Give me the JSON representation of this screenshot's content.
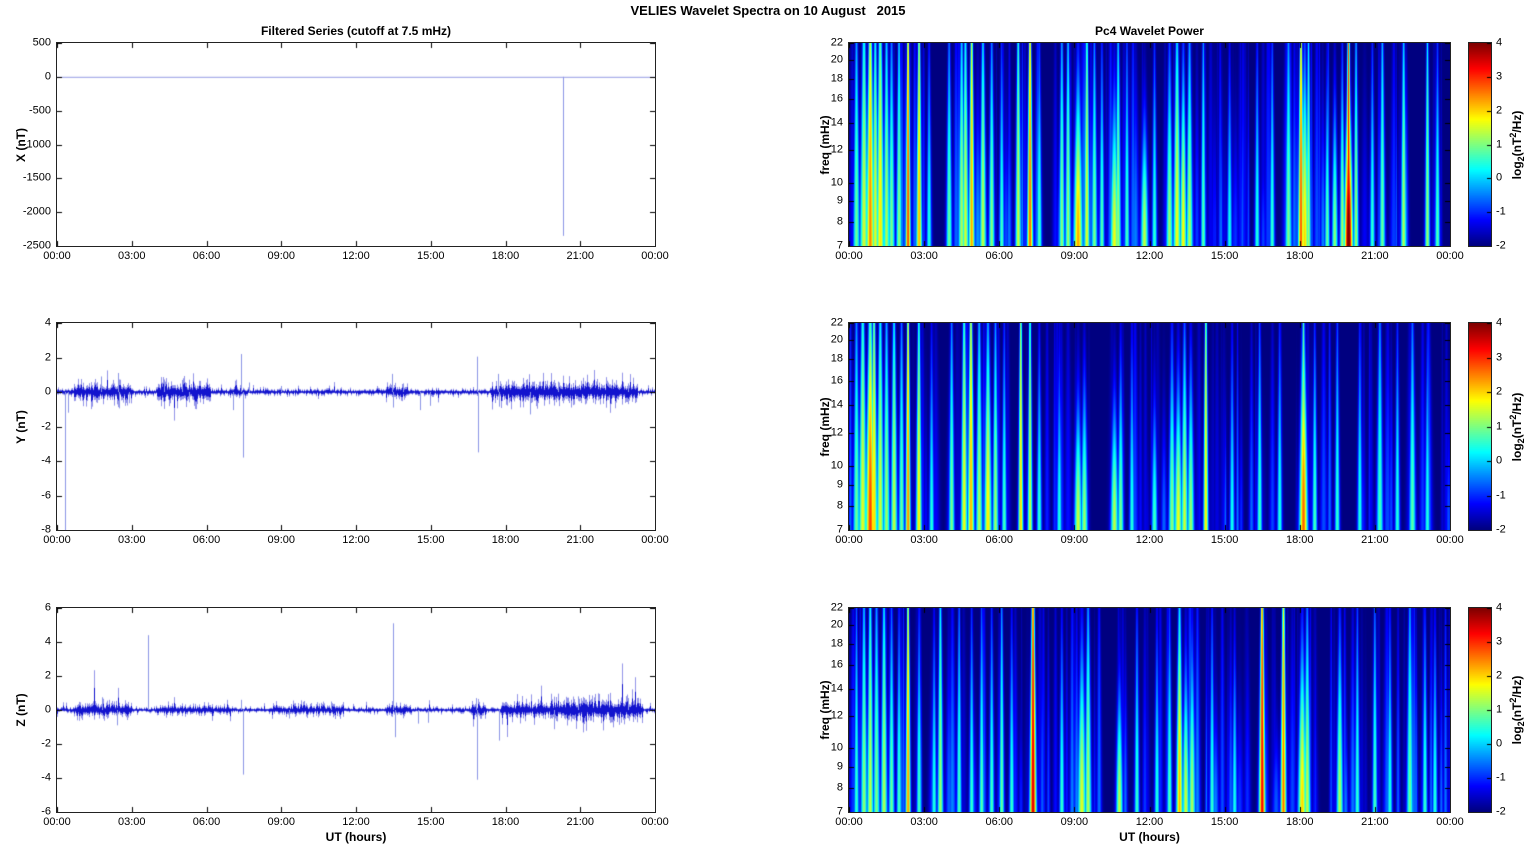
{
  "figure_title": "VELIES Wavelet Spectra on 10 August   2015",
  "colors": {
    "background": "#ffffff",
    "frame": "#222222",
    "flat_line": "#aab0ea",
    "noise_band": "#1213ce",
    "spike_line": "#8d96e6",
    "spectrogram_background": "#000084"
  },
  "time_axis": {
    "ticks": [
      "00:00",
      "03:00",
      "06:00",
      "09:00",
      "12:00",
      "15:00",
      "18:00",
      "21:00",
      "00:00"
    ],
    "tick_hours": [
      0,
      3,
      6,
      9,
      12,
      15,
      18,
      21,
      24
    ],
    "xlabel": "UT (hours)",
    "xlim_hours": [
      0,
      24
    ]
  },
  "colorbar": {
    "ticks": [
      4,
      3,
      2,
      1,
      0,
      -1,
      -2
    ],
    "clim": [
      -2,
      4
    ],
    "colormap": "jet",
    "label_parts": {
      "p1": "log",
      "sub": "2",
      "p2": "(nT",
      "sup": "2",
      "p3": "/Hz)"
    }
  },
  "chart_data": [
    {
      "id": "ts_x",
      "type": "line",
      "component": "X",
      "title": "Filtered Series (cutoff at 7.5 mHz)",
      "ylabel": "X (nT)",
      "ylim": [
        -2500,
        500
      ],
      "yticks": [
        500,
        0,
        -500,
        -1000,
        -1500,
        -2000,
        -2500
      ],
      "xlim": [
        0,
        24
      ],
      "baseline_amp": 0,
      "seed": 10,
      "bursts_format": "[t_start_h, t_end_h, amplitude_nT]",
      "bursts": [],
      "spikes_format": "[t_hours, value_nT]",
      "spikes": [
        [
          20.3,
          -2350
        ]
      ]
    },
    {
      "id": "ts_y",
      "type": "line",
      "component": "Y",
      "ylabel": "Y (nT)",
      "ylim": [
        -8,
        4
      ],
      "yticks": [
        4,
        2,
        0,
        -2,
        -4,
        -6,
        -8
      ],
      "xlim": [
        0,
        24
      ],
      "baseline_amp": 0.06,
      "seed": 11,
      "bursts_format": "[t_start_h, t_end_h, amplitude_nT]",
      "bursts": [
        [
          0.7,
          3.0,
          0.18
        ],
        [
          4.0,
          6.2,
          0.22
        ],
        [
          6.9,
          7.6,
          0.12
        ],
        [
          13.2,
          14.1,
          0.14
        ],
        [
          17.4,
          19.6,
          0.2
        ],
        [
          19.6,
          23.3,
          0.22
        ]
      ],
      "spikes_format": "[t_hours, value_nT]",
      "spikes": [
        [
          0.33,
          -8
        ],
        [
          0.45,
          -1.2
        ],
        [
          1.75,
          0.9
        ],
        [
          2.45,
          1.1
        ],
        [
          2.5,
          -0.95
        ],
        [
          2.9,
          -0.5
        ],
        [
          4.3,
          0.6
        ],
        [
          5.0,
          0.7
        ],
        [
          5.3,
          -0.6
        ],
        [
          7.05,
          -1.05
        ],
        [
          7.4,
          2.2
        ],
        [
          7.45,
          -3.8
        ],
        [
          7.7,
          0.55
        ],
        [
          9.0,
          0.35
        ],
        [
          13.45,
          1.05
        ],
        [
          13.5,
          -0.9
        ],
        [
          13.9,
          0.5
        ],
        [
          14.55,
          -1.05
        ],
        [
          14.95,
          -0.8
        ],
        [
          16.85,
          2.05
        ],
        [
          16.9,
          -3.5
        ],
        [
          17.7,
          1.05
        ],
        [
          17.75,
          -0.85
        ],
        [
          19.0,
          -1.3
        ],
        [
          20.1,
          0.6
        ],
        [
          22.9,
          0.5
        ]
      ]
    },
    {
      "id": "ts_z",
      "type": "line",
      "component": "Z",
      "ylabel": "Z (nT)",
      "ylim": [
        -6,
        6
      ],
      "yticks": [
        6,
        4,
        2,
        0,
        -2,
        -4,
        -6
      ],
      "xlim": [
        0,
        24
      ],
      "baseline_amp": 0.05,
      "seed": 12,
      "bursts_format": "[t_start_h, t_end_h, amplitude_nT]",
      "bursts": [
        [
          0.7,
          3.0,
          0.14
        ],
        [
          4.0,
          7.0,
          0.1
        ],
        [
          8.5,
          11.5,
          0.1
        ],
        [
          13.2,
          14.2,
          0.12
        ],
        [
          16.6,
          17.2,
          0.14
        ],
        [
          17.8,
          19.8,
          0.16
        ],
        [
          19.8,
          23.5,
          0.24
        ]
      ],
      "spikes_format": "[t_hours, value_nT]",
      "spikes": [
        [
          1.8,
          0.75
        ],
        [
          2.4,
          -0.9
        ],
        [
          3.65,
          4.4
        ],
        [
          7.4,
          0.6
        ],
        [
          7.45,
          -3.8
        ],
        [
          9.3,
          -0.5
        ],
        [
          11.0,
          0.5
        ],
        [
          13.5,
          5.1
        ],
        [
          13.55,
          -1.6
        ],
        [
          14.5,
          -0.8
        ],
        [
          14.9,
          -0.75
        ],
        [
          16.8,
          0.7
        ],
        [
          16.85,
          -4.1
        ],
        [
          17.75,
          -1.8
        ],
        [
          19.95,
          -0.9
        ],
        [
          20.9,
          0.8
        ],
        [
          22.9,
          0.7
        ]
      ]
    },
    {
      "id": "spec_x",
      "type": "heatmap",
      "component": "X",
      "title": "Pc4 Wavelet Power",
      "ylabel": "freq (mHz)",
      "flim": [
        7,
        22
      ],
      "fticks": [
        22,
        20,
        18,
        16,
        14,
        12,
        10,
        9,
        8,
        7
      ],
      "yscale": "log",
      "clim": [
        -2,
        4
      ],
      "events_format": "[t_hours, sigma_hours, peak_log2_power, vertical_extent_frac]",
      "events": [
        [
          0.3,
          0.04,
          0.9,
          1.4
        ],
        [
          0.6,
          0.05,
          1.5,
          1.6
        ],
        [
          0.85,
          0.05,
          2.5,
          1.9
        ],
        [
          1.05,
          0.04,
          1.6,
          1.5
        ],
        [
          1.25,
          0.05,
          1.9,
          1.7
        ],
        [
          1.5,
          0.04,
          1.3,
          1.4
        ],
        [
          1.7,
          0.04,
          1.0,
          1.2
        ],
        [
          2.0,
          0.035,
          1.1,
          1.5
        ],
        [
          2.36,
          0.03,
          2.9,
          2.3
        ],
        [
          2.8,
          0.035,
          2.2,
          2.0
        ],
        [
          3.2,
          0.03,
          0.5,
          1.0
        ],
        [
          4.0,
          0.035,
          0.9,
          1.2
        ],
        [
          4.5,
          0.04,
          1.3,
          1.4
        ],
        [
          4.65,
          0.04,
          1.5,
          1.5
        ],
        [
          4.9,
          0.035,
          2.3,
          2.2
        ],
        [
          5.35,
          0.04,
          1.4,
          1.4
        ],
        [
          5.7,
          0.035,
          1.1,
          1.2
        ],
        [
          6.1,
          0.03,
          0.7,
          1.0
        ],
        [
          6.76,
          0.035,
          1.5,
          1.7
        ],
        [
          7.23,
          0.035,
          2.7,
          2.3
        ],
        [
          7.6,
          0.03,
          0.8,
          1.0
        ],
        [
          8.5,
          0.035,
          1.1,
          1.3
        ],
        [
          8.75,
          0.035,
          1.2,
          1.4
        ],
        [
          9.15,
          0.055,
          2.3,
          0.8
        ],
        [
          9.5,
          0.035,
          1.6,
          1.8
        ],
        [
          9.8,
          0.035,
          1.0,
          1.2
        ],
        [
          10.1,
          0.03,
          0.8,
          1.0
        ],
        [
          10.6,
          0.05,
          1.7,
          0.7
        ],
        [
          10.75,
          0.035,
          1.2,
          1.4
        ],
        [
          11.1,
          0.03,
          0.7,
          1.1
        ],
        [
          11.8,
          0.045,
          1.4,
          0.6
        ],
        [
          12.2,
          0.03,
          0.6,
          1.0
        ],
        [
          12.8,
          0.04,
          1.2,
          1.0
        ],
        [
          13.1,
          0.045,
          1.7,
          1.3
        ],
        [
          13.35,
          0.04,
          1.8,
          0.9
        ],
        [
          13.6,
          0.04,
          1.3,
          1.2
        ],
        [
          14.15,
          0.03,
          0.8,
          1.4
        ],
        [
          15.2,
          0.03,
          0.4,
          0.9
        ],
        [
          16.3,
          0.03,
          0.5,
          1.0
        ],
        [
          16.9,
          0.03,
          0.6,
          1.1
        ],
        [
          17.55,
          0.04,
          1.0,
          1.3
        ],
        [
          18.05,
          0.035,
          2.8,
          2.0
        ],
        [
          18.2,
          0.045,
          2.0,
          0.9
        ],
        [
          18.35,
          0.03,
          1.2,
          1.6
        ],
        [
          19.1,
          0.03,
          0.9,
          0.8
        ],
        [
          19.4,
          0.035,
          1.1,
          0.7
        ],
        [
          19.7,
          0.03,
          1.3,
          0.9
        ],
        [
          19.95,
          0.05,
          4.3,
          0.7
        ],
        [
          19.95,
          0.03,
          3.4,
          2.6
        ],
        [
          20.25,
          0.03,
          1.2,
          1.3
        ],
        [
          20.9,
          0.03,
          0.6,
          1.0
        ],
        [
          21.3,
          0.035,
          0.9,
          1.5
        ],
        [
          22.15,
          0.035,
          1.3,
          1.4
        ],
        [
          23.1,
          0.03,
          1.2,
          1.6
        ],
        [
          23.5,
          0.03,
          0.8,
          1.0
        ]
      ],
      "noise": {
        "seed": 21,
        "count": 150,
        "w": [
          0.015,
          0.05
        ],
        "p": [
          -1.7,
          -0.3
        ],
        "ext": [
          0.4,
          1.6
        ]
      }
    },
    {
      "id": "spec_y",
      "type": "heatmap",
      "component": "Y",
      "ylabel": "freq (mHz)",
      "flim": [
        7,
        22
      ],
      "fticks": [
        22,
        20,
        18,
        16,
        14,
        12,
        10,
        9,
        8,
        7
      ],
      "yscale": "log",
      "clim": [
        -2,
        4
      ],
      "events_format": "[t_hours, sigma_hours, peak_log2_power, vertical_extent_frac]",
      "events": [
        [
          0.3,
          0.04,
          0.9,
          1.3
        ],
        [
          0.55,
          0.05,
          1.6,
          1.6
        ],
        [
          0.85,
          0.055,
          2.9,
          1.3
        ],
        [
          1.0,
          0.04,
          2.0,
          1.8
        ],
        [
          1.25,
          0.045,
          1.5,
          1.5
        ],
        [
          1.5,
          0.04,
          1.2,
          1.3
        ],
        [
          1.8,
          0.04,
          1.4,
          1.5
        ],
        [
          2.1,
          0.035,
          0.9,
          1.2
        ],
        [
          2.36,
          0.03,
          2.5,
          2.2
        ],
        [
          2.79,
          0.035,
          1.9,
          1.5
        ],
        [
          3.3,
          0.03,
          0.5,
          0.9
        ],
        [
          4.1,
          0.035,
          1.0,
          1.2
        ],
        [
          4.6,
          0.04,
          1.7,
          1.7
        ],
        [
          4.87,
          0.04,
          2.2,
          2.2
        ],
        [
          5.2,
          0.04,
          1.3,
          1.3
        ],
        [
          5.55,
          0.045,
          1.9,
          1.1
        ],
        [
          5.85,
          0.035,
          1.2,
          1.2
        ],
        [
          6.2,
          0.03,
          0.7,
          1.0
        ],
        [
          6.86,
          0.03,
          2.0,
          2.2
        ],
        [
          7.23,
          0.03,
          1.5,
          2.0
        ],
        [
          7.6,
          0.03,
          0.6,
          0.9
        ],
        [
          8.4,
          0.03,
          0.5,
          0.8
        ],
        [
          9.15,
          0.045,
          1.5,
          0.6
        ],
        [
          9.4,
          0.04,
          1.2,
          0.7
        ],
        [
          10.6,
          0.045,
          1.4,
          0.6
        ],
        [
          10.85,
          0.035,
          1.0,
          0.8
        ],
        [
          11.3,
          0.03,
          0.5,
          0.9
        ],
        [
          12.2,
          0.035,
          0.7,
          0.6
        ],
        [
          12.9,
          0.04,
          1.1,
          0.9
        ],
        [
          13.15,
          0.045,
          1.7,
          0.7
        ],
        [
          13.4,
          0.04,
          1.5,
          1.0
        ],
        [
          13.65,
          0.04,
          1.2,
          0.8
        ],
        [
          14.25,
          0.03,
          1.9,
          2.1
        ],
        [
          15.3,
          0.03,
          0.4,
          0.9
        ],
        [
          16.4,
          0.03,
          0.7,
          1.1
        ],
        [
          17.2,
          0.03,
          0.5,
          1.0
        ],
        [
          18.15,
          0.05,
          2.7,
          1.0
        ],
        [
          18.15,
          0.03,
          1.5,
          1.9
        ],
        [
          18.6,
          0.03,
          0.7,
          1.0
        ],
        [
          19.5,
          0.03,
          0.6,
          1.1
        ],
        [
          20.4,
          0.03,
          0.5,
          1.0
        ],
        [
          21.2,
          0.04,
          0.7,
          1.3
        ],
        [
          21.9,
          0.03,
          0.5,
          1.0
        ],
        [
          22.5,
          0.04,
          0.8,
          1.2
        ],
        [
          23.1,
          0.03,
          0.5,
          0.9
        ]
      ],
      "noise": {
        "seed": 22,
        "count": 100,
        "w": [
          0.015,
          0.05
        ],
        "p": [
          -1.7,
          -0.5
        ],
        "ext": [
          0.4,
          1.6
        ]
      }
    },
    {
      "id": "spec_z",
      "type": "heatmap",
      "component": "Z",
      "ylabel": "freq (mHz)",
      "flim": [
        7,
        22
      ],
      "fticks": [
        22,
        20,
        18,
        16,
        14,
        12,
        10,
        9,
        8,
        7
      ],
      "yscale": "log",
      "clim": [
        -2,
        4
      ],
      "events_format": "[t_hours, sigma_hours, peak_log2_power, vertical_extent_frac]",
      "events": [
        [
          0.3,
          0.03,
          0.6,
          1.2
        ],
        [
          0.6,
          0.04,
          1.1,
          1.4
        ],
        [
          0.85,
          0.04,
          1.4,
          1.6
        ],
        [
          1.1,
          0.04,
          1.0,
          1.3
        ],
        [
          1.4,
          0.04,
          1.3,
          1.5
        ],
        [
          1.7,
          0.035,
          0.9,
          1.1
        ],
        [
          2.0,
          0.03,
          0.7,
          1.0
        ],
        [
          2.36,
          0.03,
          2.4,
          2.2
        ],
        [
          2.8,
          0.03,
          0.7,
          1.0
        ],
        [
          3.4,
          0.03,
          0.5,
          0.9
        ],
        [
          3.65,
          0.035,
          1.2,
          1.6
        ],
        [
          4.4,
          0.03,
          0.7,
          1.2
        ],
        [
          4.9,
          0.03,
          0.6,
          1.0
        ],
        [
          5.3,
          0.03,
          0.8,
          1.1
        ],
        [
          5.7,
          0.03,
          0.7,
          1.0
        ],
        [
          6.1,
          0.03,
          0.9,
          1.3
        ],
        [
          6.5,
          0.03,
          0.6,
          0.9
        ],
        [
          7.35,
          0.04,
          3.5,
          2.4
        ],
        [
          8.5,
          0.03,
          0.6,
          0.9
        ],
        [
          9.3,
          0.05,
          1.6,
          0.8
        ],
        [
          9.55,
          0.04,
          1.3,
          1.2
        ],
        [
          10.8,
          0.04,
          1.4,
          0.6
        ],
        [
          11.5,
          0.03,
          0.6,
          1.0
        ],
        [
          12.3,
          0.03,
          0.5,
          0.9
        ],
        [
          12.8,
          0.03,
          0.8,
          1.0
        ],
        [
          13.2,
          0.04,
          2.2,
          1.2
        ],
        [
          13.45,
          0.04,
          1.5,
          0.7
        ],
        [
          13.7,
          0.04,
          1.3,
          0.8
        ],
        [
          14.5,
          0.03,
          0.6,
          1.0
        ],
        [
          15.4,
          0.03,
          0.4,
          0.8
        ],
        [
          16.5,
          0.038,
          3.3,
          2.3
        ],
        [
          17.35,
          0.035,
          2.6,
          2.1
        ],
        [
          18.1,
          0.05,
          2.0,
          0.8
        ],
        [
          18.3,
          0.04,
          1.4,
          1.1
        ],
        [
          19.6,
          0.04,
          1.3,
          0.9
        ],
        [
          20.3,
          0.03,
          0.6,
          1.1
        ],
        [
          21.0,
          0.03,
          0.7,
          1.2
        ],
        [
          21.6,
          0.03,
          0.5,
          1.0
        ],
        [
          22.4,
          0.04,
          0.9,
          1.3
        ],
        [
          23.0,
          0.03,
          0.6,
          1.0
        ],
        [
          23.4,
          0.03,
          0.5,
          0.9
        ]
      ],
      "noise": {
        "seed": 23,
        "count": 140,
        "w": [
          0.015,
          0.05
        ],
        "p": [
          -1.7,
          -0.4
        ],
        "ext": [
          0.4,
          1.6
        ]
      }
    }
  ]
}
